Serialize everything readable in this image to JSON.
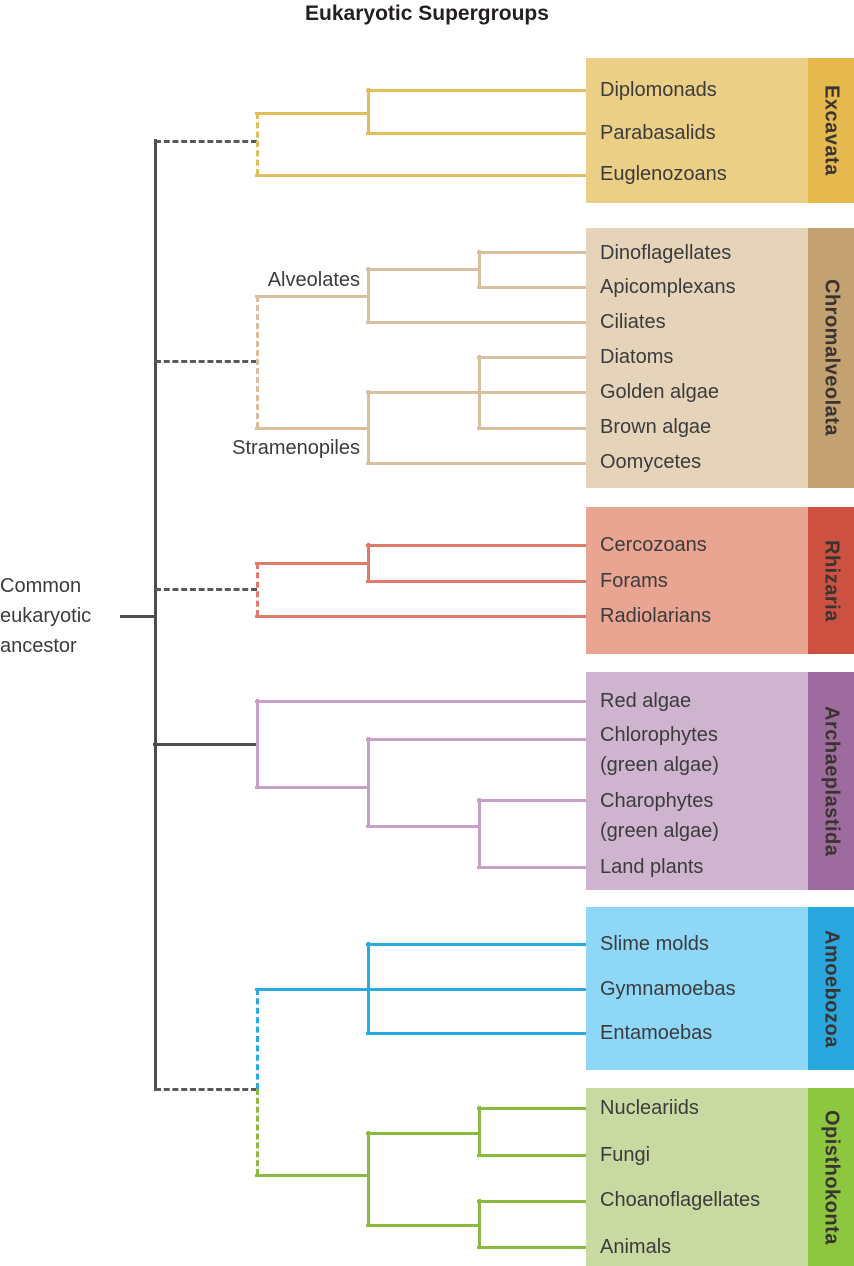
{
  "title": "Eukaryotic Supergroups",
  "ancestor": {
    "line1": "Common",
    "line2": "eukaryotic",
    "line3": "ancestor"
  },
  "clade_labels": {
    "alveolates": "Alveolates",
    "stramenopiles": "Stramenopiles"
  },
  "colors": {
    "trunk": "#4d4d4f",
    "dash": "#58595b",
    "text": "#3b3b3b",
    "title": "#231f20",
    "background": "#ffffff"
  },
  "groups": [
    {
      "name": "Excavata",
      "box_color": "#eccf86",
      "strip_color": "#e5b94e",
      "line_color": "#e2bd5e",
      "trunk_connection": "dashed",
      "members": [
        "Diplomonads",
        "Parabasalids",
        "Euglenozoans"
      ]
    },
    {
      "name": "Chromalveolata",
      "box_color": "#e6d4ba",
      "strip_color": "#c3a171",
      "line_color": "#d9bf9e",
      "trunk_connection": "dashed",
      "members": [
        "Dinoflagellates",
        "Apicomplexans",
        "Ciliates",
        "Diatoms",
        "Golden algae",
        "Brown algae",
        "Oomycetes"
      ]
    },
    {
      "name": "Rhizaria",
      "box_color": "#e9a592",
      "strip_color": "#cd5140",
      "line_color": "#e07b6b",
      "trunk_connection": "dashed",
      "members": [
        "Cercozoans",
        "Forams",
        "Radiolarians"
      ]
    },
    {
      "name": "Archaeplastida",
      "box_color": "#cfb4d0",
      "strip_color": "#9d6b9d",
      "line_color": "#c79fc7",
      "trunk_connection": "solid",
      "members": [
        "Red algae",
        "Chlorophytes",
        "(green algae)",
        "Charophytes",
        "(green algae)",
        "Land plants"
      ]
    },
    {
      "name": "Amoebozoa",
      "box_color": "#8ed7f7",
      "strip_color": "#29a8e0",
      "line_color": "#29abe2",
      "trunk_connection": "dashed",
      "members": [
        "Slime molds",
        "Gymnamoebas",
        "Entamoebas"
      ]
    },
    {
      "name": "Opisthokonta",
      "box_color": "#c9d9a2",
      "strip_color": "#8dc63f",
      "line_color": "#8cb93f",
      "trunk_connection": "dashed",
      "members": [
        "Nucleariids",
        "Fungi",
        "Choanoflagellates",
        "Animals"
      ]
    }
  ]
}
